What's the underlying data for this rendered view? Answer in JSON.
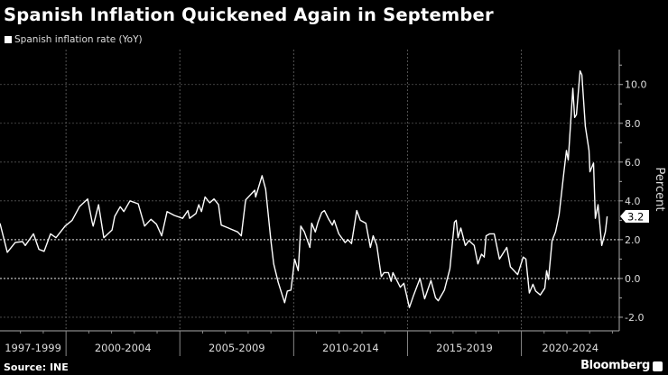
{
  "title": "Spanish Inflation Quickened Again in September",
  "source": "Source: INE",
  "brand": "Bloomberg",
  "colors": {
    "background": "#000000",
    "line": "#ffffff",
    "grid": "#666666"
  },
  "chart_data": {
    "type": "line",
    "title": "Spanish Inflation Quickened Again in September",
    "ylabel": "Percent",
    "xlabel": "",
    "y_axis_position": "right",
    "ylim": [
      -2.7,
      11.8
    ],
    "xlim": [
      1997.1,
      2024.3
    ],
    "yticks": [
      -2.0,
      0.0,
      2.0,
      4.0,
      6.0,
      8.0,
      10.0
    ],
    "ytick_labels": [
      "-2.0",
      "0.0",
      "2.0",
      "4.0",
      "6.0",
      "8.0",
      "10.0"
    ],
    "x_periods": [
      {
        "label": "1997-1999",
        "start": 1997.1,
        "end": 2000
      },
      {
        "label": "2000-2004",
        "start": 2000,
        "end": 2005
      },
      {
        "label": "2005-2009",
        "start": 2005,
        "end": 2010
      },
      {
        "label": "2010-2014",
        "start": 2010,
        "end": 2015
      },
      {
        "label": "2015-2019",
        "start": 2015,
        "end": 2020
      },
      {
        "label": "2020-2024",
        "start": 2020,
        "end": 2024.3
      }
    ],
    "grid": true,
    "legend": "top-left",
    "last_value_label": "3.2",
    "series": [
      {
        "name": "Spanish inflation rate (YoY)",
        "x": [
          1997.1,
          1997.42,
          1997.77,
          1998.09,
          1998.21,
          1998.57,
          1998.81,
          1999.04,
          1999.32,
          1999.56,
          1999.96,
          2000.27,
          2000.59,
          2000.95,
          2001.15,
          2001.19,
          2001.43,
          2001.66,
          2002.02,
          2002.14,
          2002.38,
          2002.54,
          2002.81,
          2003.17,
          2003.45,
          2003.73,
          2003.97,
          2004.2,
          2004.44,
          2004.76,
          2005.12,
          2005.35,
          2005.43,
          2005.71,
          2005.83,
          2005.95,
          2006.11,
          2006.31,
          2006.5,
          2006.7,
          2006.82,
          2007.14,
          2007.54,
          2007.7,
          2007.89,
          2008.29,
          2008.33,
          2008.61,
          2008.77,
          2009.0,
          2009.12,
          2009.32,
          2009.6,
          2009.72,
          2009.88,
          2010.04,
          2010.2,
          2010.31,
          2010.47,
          2010.71,
          2010.79,
          2010.95,
          2011.07,
          2011.23,
          2011.35,
          2011.54,
          2011.7,
          2011.78,
          2011.98,
          2012.26,
          2012.38,
          2012.54,
          2012.77,
          2012.93,
          2013.17,
          2013.37,
          2013.49,
          2013.65,
          2013.85,
          2013.97,
          2014.16,
          2014.28,
          2014.36,
          2014.68,
          2014.84,
          2015.08,
          2015.27,
          2015.55,
          2015.75,
          2016.03,
          2016.23,
          2016.35,
          2016.62,
          2016.86,
          2017.06,
          2017.14,
          2017.22,
          2017.34,
          2017.54,
          2017.7,
          2017.93,
          2018.09,
          2018.25,
          2018.37,
          2018.45,
          2018.61,
          2018.81,
          2019.04,
          2019.36,
          2019.52,
          2019.84,
          2020.08,
          2020.2,
          2020.35,
          2020.51,
          2020.63,
          2020.83,
          2021.03,
          2021.11,
          2021.19,
          2021.35,
          2021.5,
          2021.66,
          2021.86,
          2021.98,
          2022.06,
          2022.26,
          2022.34,
          2022.42,
          2022.58,
          2022.66,
          2022.81,
          2022.97,
          2023.01,
          2023.17,
          2023.25,
          2023.37,
          2023.53,
          2023.69,
          2023.77
        ],
        "values": [
          2.84,
          1.35,
          1.86,
          1.9,
          1.7,
          2.3,
          1.5,
          1.4,
          2.3,
          2.1,
          2.7,
          3.0,
          3.7,
          4.1,
          2.9,
          2.7,
          3.8,
          2.1,
          2.5,
          3.2,
          3.7,
          3.45,
          4.0,
          3.85,
          2.7,
          3.05,
          2.8,
          2.2,
          3.45,
          3.25,
          3.1,
          3.5,
          3.1,
          3.35,
          3.8,
          3.45,
          4.2,
          3.9,
          4.1,
          3.8,
          2.75,
          2.6,
          2.4,
          2.2,
          4.05,
          4.55,
          4.2,
          5.3,
          4.6,
          1.95,
          0.75,
          -0.2,
          -1.25,
          -0.65,
          -0.6,
          1.0,
          0.4,
          2.7,
          2.4,
          1.6,
          2.85,
          2.4,
          2.9,
          3.4,
          3.5,
          3.05,
          2.75,
          3.0,
          2.3,
          1.85,
          2.0,
          1.8,
          3.5,
          3.0,
          2.85,
          1.6,
          2.2,
          1.7,
          0.1,
          0.3,
          0.3,
          -0.15,
          0.3,
          -0.45,
          -0.25,
          -1.5,
          -0.85,
          0.0,
          -1.05,
          -0.1,
          -1.0,
          -1.15,
          -0.6,
          0.5,
          2.9,
          3.0,
          2.1,
          2.6,
          1.7,
          1.95,
          1.7,
          0.75,
          1.25,
          1.1,
          2.2,
          2.3,
          2.3,
          1.0,
          1.6,
          0.6,
          0.2,
          1.1,
          1.0,
          -0.75,
          -0.3,
          -0.65,
          -0.85,
          -0.5,
          0.4,
          -0.05,
          1.95,
          2.4,
          3.3,
          5.4,
          6.6,
          6.1,
          9.8,
          8.3,
          8.45,
          10.7,
          10.5,
          7.85,
          6.6,
          5.5,
          5.95,
          3.1,
          3.8,
          1.7,
          2.4,
          3.2
        ]
      }
    ]
  }
}
